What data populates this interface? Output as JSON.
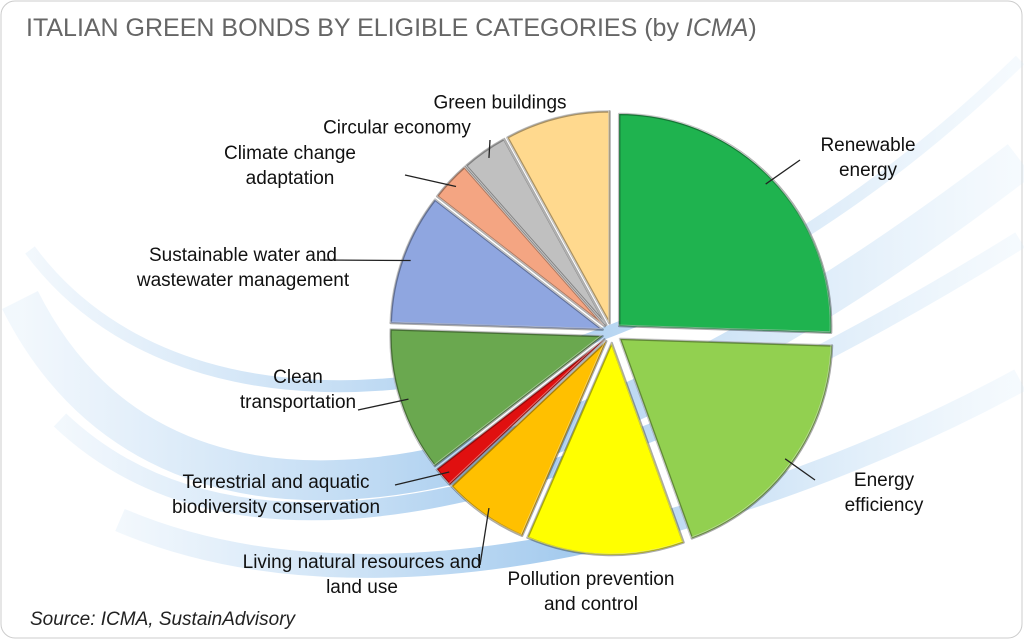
{
  "chart_data": {
    "type": "pie",
    "title": "ITALIAN GREEN BONDS BY ELIGIBLE CATEGORIES (by",
    "title_emphasis": "ICMA",
    "title_end": ")",
    "source": "Source: ICMA, SustainAdvisory",
    "categories": [
      "Renewable energy",
      "Energy efficiency",
      "Pollution prevention and control",
      "Living natural resources and land use",
      "Terrestrial and aquatic biodiversity conservation",
      "Clean transportation",
      "Sustainable water and wastewater management",
      "Climate change adaptation",
      "Circular economy",
      "Green buildings"
    ],
    "values": [
      25.5,
      19,
      12,
      6.5,
      1.5,
      11,
      10,
      3,
      3.5,
      8
    ],
    "colors": [
      "#1fb34f",
      "#92d050",
      "#ffff00",
      "#ffc000",
      "#e01010",
      "#6aa84f",
      "#8fa6e0",
      "#f4a582",
      "#c0c0c0",
      "#ffd98e"
    ]
  }
}
